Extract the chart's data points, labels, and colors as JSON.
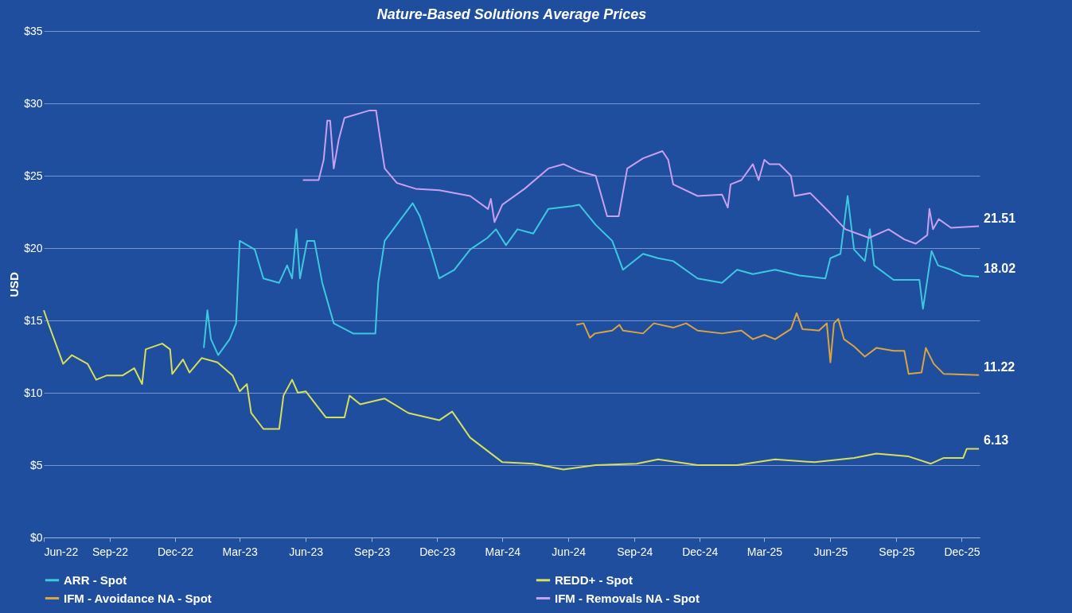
{
  "chart_data": {
    "type": "line",
    "title": "Nature-Based Solutions Average Prices",
    "ylabel": "USD",
    "xlim": [
      "2022-06-01",
      "2025-12-26"
    ],
    "xticks": [
      {
        "value": "2022-06-01",
        "label": "Jun-22"
      },
      {
        "value": "2022-09-01",
        "label": "Sep-22"
      },
      {
        "value": "2022-12-01",
        "label": "Dec-22"
      },
      {
        "value": "2023-03-01",
        "label": "Mar-23"
      },
      {
        "value": "2023-06-01",
        "label": "Jun-23"
      },
      {
        "value": "2023-09-01",
        "label": "Sep-23"
      },
      {
        "value": "2023-12-01",
        "label": "Dec-23"
      },
      {
        "value": "2024-03-01",
        "label": "Mar-24"
      },
      {
        "value": "2024-06-01",
        "label": "Jun-24"
      },
      {
        "value": "2024-09-01",
        "label": "Sep-24"
      },
      {
        "value": "2024-12-01",
        "label": "Dec-24"
      },
      {
        "value": "2025-03-01",
        "label": "Mar-25"
      },
      {
        "value": "2025-06-01",
        "label": "Jun-25"
      },
      {
        "value": "2025-09-01",
        "label": "Sep-25"
      },
      {
        "value": "2025-12-01",
        "label": "Dec-25"
      }
    ],
    "ylim": [
      0,
      35
    ],
    "yticks": [
      {
        "value": 0,
        "label": "$0"
      },
      {
        "value": 5,
        "label": "$5"
      },
      {
        "value": 10,
        "label": "$10"
      },
      {
        "value": 15,
        "label": "$15"
      },
      {
        "value": 20,
        "label": "$20"
      },
      {
        "value": 25,
        "label": "$25"
      },
      {
        "value": 30,
        "label": "$30"
      },
      {
        "value": 35,
        "label": "$35"
      }
    ],
    "grid": "y",
    "legend": "bottom",
    "marker": "none",
    "line_style": "solid",
    "series": [
      {
        "name": "ARR - Spot",
        "color": "#3ec8e0",
        "x": [
          "2023-01-10",
          "2023-01-15",
          "2023-01-20",
          "2023-01-30",
          "2023-02-15",
          "2023-02-24",
          "2023-03-01",
          "2023-03-22",
          "2023-04-03",
          "2023-04-25",
          "2023-05-06",
          "2023-05-13",
          "2023-05-19",
          "2023-05-24",
          "2023-06-03",
          "2023-06-13",
          "2023-06-24",
          "2023-07-10",
          "2023-08-06",
          "2023-09-06",
          "2023-09-10",
          "2023-09-19",
          "2023-10-10",
          "2023-10-28",
          "2023-11-07",
          "2023-11-24",
          "2023-12-04",
          "2023-12-25",
          "2024-01-16",
          "2024-02-09",
          "2024-02-21",
          "2024-03-06",
          "2024-03-22",
          "2024-04-13",
          "2024-05-04",
          "2024-06-06",
          "2024-06-16",
          "2024-07-09",
          "2024-08-01",
          "2024-08-16",
          "2024-09-13",
          "2024-10-04",
          "2024-10-25",
          "2024-11-28",
          "2025-01-01",
          "2025-01-22",
          "2025-02-13",
          "2025-03-16",
          "2025-04-19",
          "2025-05-25",
          "2025-06-01",
          "2025-06-15",
          "2025-06-25",
          "2025-07-04",
          "2025-07-19",
          "2025-07-26",
          "2025-08-01",
          "2025-08-28",
          "2025-10-03",
          "2025-10-08",
          "2025-10-14",
          "2025-10-20",
          "2025-10-29",
          "2025-11-16",
          "2025-12-03",
          "2025-12-25"
        ],
        "values": [
          13.1,
          15.7,
          13.7,
          12.6,
          13.7,
          14.8,
          20.5,
          19.9,
          17.9,
          17.6,
          18.8,
          17.9,
          21.3,
          17.9,
          20.5,
          20.5,
          17.6,
          14.8,
          14.1,
          14.1,
          17.6,
          20.5,
          21.9,
          23.1,
          22.2,
          19.6,
          17.9,
          18.5,
          19.9,
          20.7,
          21.3,
          20.2,
          21.3,
          21.0,
          22.7,
          22.9,
          23.0,
          21.6,
          20.5,
          18.5,
          19.6,
          19.3,
          19.1,
          17.9,
          17.6,
          18.5,
          18.2,
          18.5,
          18.1,
          17.9,
          19.3,
          19.6,
          23.6,
          19.9,
          19.1,
          21.3,
          18.8,
          17.8,
          17.8,
          15.8,
          17.8,
          19.8,
          18.8,
          18.5,
          18.1,
          18.02
        ]
      },
      {
        "name": "REDD+ - Spot",
        "color": "#d4e05a",
        "x": [
          "2022-06-01",
          "2022-06-08",
          "2022-06-28",
          "2022-07-10",
          "2022-08-01",
          "2022-08-13",
          "2022-08-28",
          "2022-09-19",
          "2022-10-05",
          "2022-10-16",
          "2022-10-21",
          "2022-11-13",
          "2022-11-24",
          "2022-11-27",
          "2022-12-12",
          "2022-12-21",
          "2023-01-07",
          "2023-01-29",
          "2023-02-19",
          "2023-03-01",
          "2023-03-11",
          "2023-03-17",
          "2023-04-03",
          "2023-04-25",
          "2023-05-01",
          "2023-05-13",
          "2023-05-21",
          "2023-06-01",
          "2023-06-29",
          "2023-07-25",
          "2023-08-01",
          "2023-08-16",
          "2023-09-19",
          "2023-10-22",
          "2023-12-04",
          "2023-12-22",
          "2024-01-16",
          "2024-03-01",
          "2024-04-13",
          "2024-05-25",
          "2024-07-09",
          "2024-09-04",
          "2024-10-04",
          "2024-11-28",
          "2025-01-22",
          "2025-03-16",
          "2025-05-10",
          "2025-07-04",
          "2025-08-04",
          "2025-09-18",
          "2025-10-19",
          "2025-11-06",
          "2025-12-03",
          "2025-12-08",
          "2025-12-25"
        ],
        "values": [
          15.7,
          14.7,
          12.0,
          12.6,
          12.0,
          10.9,
          11.2,
          11.2,
          11.7,
          10.6,
          13.0,
          13.4,
          13.0,
          11.3,
          12.3,
          11.4,
          12.4,
          12.1,
          11.2,
          10.1,
          10.6,
          8.6,
          7.5,
          7.5,
          9.8,
          10.9,
          10.0,
          10.1,
          8.3,
          8.3,
          9.8,
          9.2,
          9.6,
          8.6,
          8.1,
          8.7,
          6.9,
          5.2,
          5.1,
          4.7,
          5.0,
          5.1,
          5.4,
          5.0,
          5.0,
          5.4,
          5.2,
          5.5,
          5.8,
          5.6,
          5.1,
          5.5,
          5.5,
          6.13,
          6.13
        ]
      },
      {
        "name": "IFM - Avoidance NA - Spot",
        "color": "#d9a441",
        "x": [
          "2024-06-12",
          "2024-06-22",
          "2024-07-01",
          "2024-07-08",
          "2024-08-01",
          "2024-08-11",
          "2024-08-16",
          "2024-09-13",
          "2024-09-28",
          "2024-10-25",
          "2024-11-12",
          "2024-11-28",
          "2025-01-01",
          "2025-01-28",
          "2025-02-13",
          "2025-03-01",
          "2025-03-16",
          "2025-04-07",
          "2025-04-15",
          "2025-04-23",
          "2025-05-16",
          "2025-05-27",
          "2025-06-01",
          "2025-06-06",
          "2025-06-12",
          "2025-06-20",
          "2025-07-04",
          "2025-07-19",
          "2025-08-04",
          "2025-08-28",
          "2025-09-12",
          "2025-09-18",
          "2025-10-06",
          "2025-10-12",
          "2025-10-23",
          "2025-11-06",
          "2025-12-25"
        ],
        "values": [
          14.7,
          14.8,
          13.8,
          14.1,
          14.3,
          14.7,
          14.3,
          14.1,
          14.8,
          14.5,
          14.8,
          14.3,
          14.1,
          14.3,
          13.7,
          14.0,
          13.7,
          14.4,
          15.5,
          14.4,
          14.3,
          14.8,
          12.1,
          14.8,
          15.1,
          13.7,
          13.2,
          12.5,
          13.1,
          12.9,
          12.9,
          11.3,
          11.4,
          13.1,
          12.0,
          11.3,
          11.22
        ]
      },
      {
        "name": "IFM - Removals NA - Spot",
        "color": "#c9a0f0",
        "x": [
          "2023-05-28",
          "2023-06-19",
          "2023-06-26",
          "2023-07-01",
          "2023-07-05",
          "2023-07-10",
          "2023-07-17",
          "2023-07-25",
          "2023-08-28",
          "2023-09-07",
          "2023-09-12",
          "2023-09-19",
          "2023-10-06",
          "2023-11-01",
          "2023-12-04",
          "2024-01-16",
          "2024-02-10",
          "2024-02-14",
          "2024-02-19",
          "2024-03-01",
          "2024-04-01",
          "2024-05-04",
          "2024-05-25",
          "2024-06-16",
          "2024-07-09",
          "2024-07-25",
          "2024-08-10",
          "2024-08-22",
          "2024-09-13",
          "2024-10-10",
          "2024-10-18",
          "2024-10-25",
          "2024-11-28",
          "2025-01-01",
          "2025-01-09",
          "2025-01-13",
          "2025-01-28",
          "2025-02-13",
          "2025-02-21",
          "2025-03-01",
          "2025-03-08",
          "2025-03-22",
          "2025-04-07",
          "2025-04-12",
          "2025-05-04",
          "2025-06-01",
          "2025-06-22",
          "2025-07-25",
          "2025-08-21",
          "2025-09-12",
          "2025-09-28",
          "2025-10-14",
          "2025-10-17",
          "2025-10-22",
          "2025-10-30",
          "2025-11-16",
          "2025-12-25"
        ],
        "values": [
          24.7,
          24.7,
          26.1,
          28.8,
          28.8,
          25.5,
          27.5,
          29.0,
          29.5,
          29.5,
          27.8,
          25.5,
          24.5,
          24.1,
          24.0,
          23.6,
          22.7,
          23.4,
          21.8,
          23.0,
          24.1,
          25.5,
          25.8,
          25.3,
          25.0,
          22.2,
          22.2,
          25.5,
          26.2,
          26.7,
          26.1,
          24.4,
          23.6,
          23.7,
          22.8,
          24.4,
          24.7,
          25.8,
          24.7,
          26.1,
          25.8,
          25.8,
          25.0,
          23.6,
          23.8,
          22.4,
          21.3,
          20.7,
          21.3,
          20.6,
          20.3,
          20.9,
          22.7,
          21.3,
          22.0,
          21.4,
          21.51
        ]
      }
    ],
    "annotations": [
      {
        "text": "21.51",
        "x": "2025-12-25",
        "y": 21.51
      },
      {
        "text": "18.02",
        "x": "2025-12-25",
        "y": 18.02
      },
      {
        "text": "11.22",
        "x": "2025-12-25",
        "y": 11.22
      },
      {
        "text": "6.13",
        "x": "2025-12-25",
        "y": 6.13
      }
    ]
  }
}
